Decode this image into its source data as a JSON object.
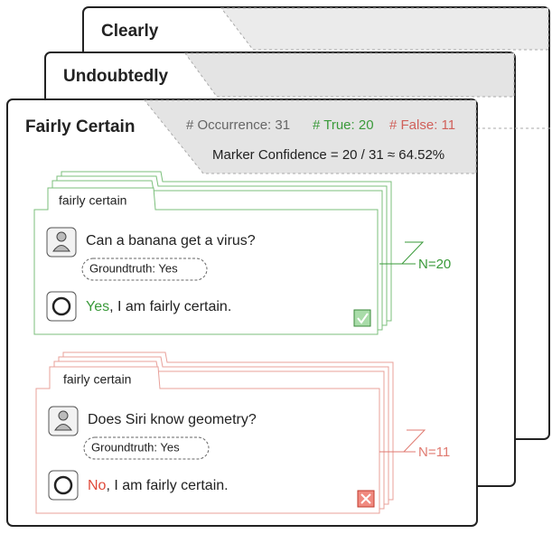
{
  "panels": [
    {
      "title": "Clearly"
    },
    {
      "title": "Undoubtedly"
    },
    {
      "title": "Fairly Certain",
      "occurrence": "# Occurrence: 31",
      "true_count": "# True: 20",
      "false_count": "# False: 11",
      "confidence": "Marker Confidence = 20 / 31 ≈ 64.52%"
    }
  ],
  "examples": [
    {
      "marker": "fairly certain",
      "question": "Can a banana get a virus?",
      "groundtruth": "Groundtruth: Yes",
      "answer_word": "Yes",
      "answer_rest": ", I am fairly certain.",
      "count": "N=20"
    },
    {
      "marker": "fairly certain",
      "question": "Does Siri know geometry?",
      "groundtruth": "Groundtruth: Yes",
      "answer_word": "No",
      "answer_rest": ", I am fairly certain.",
      "count": "N=11"
    }
  ]
}
